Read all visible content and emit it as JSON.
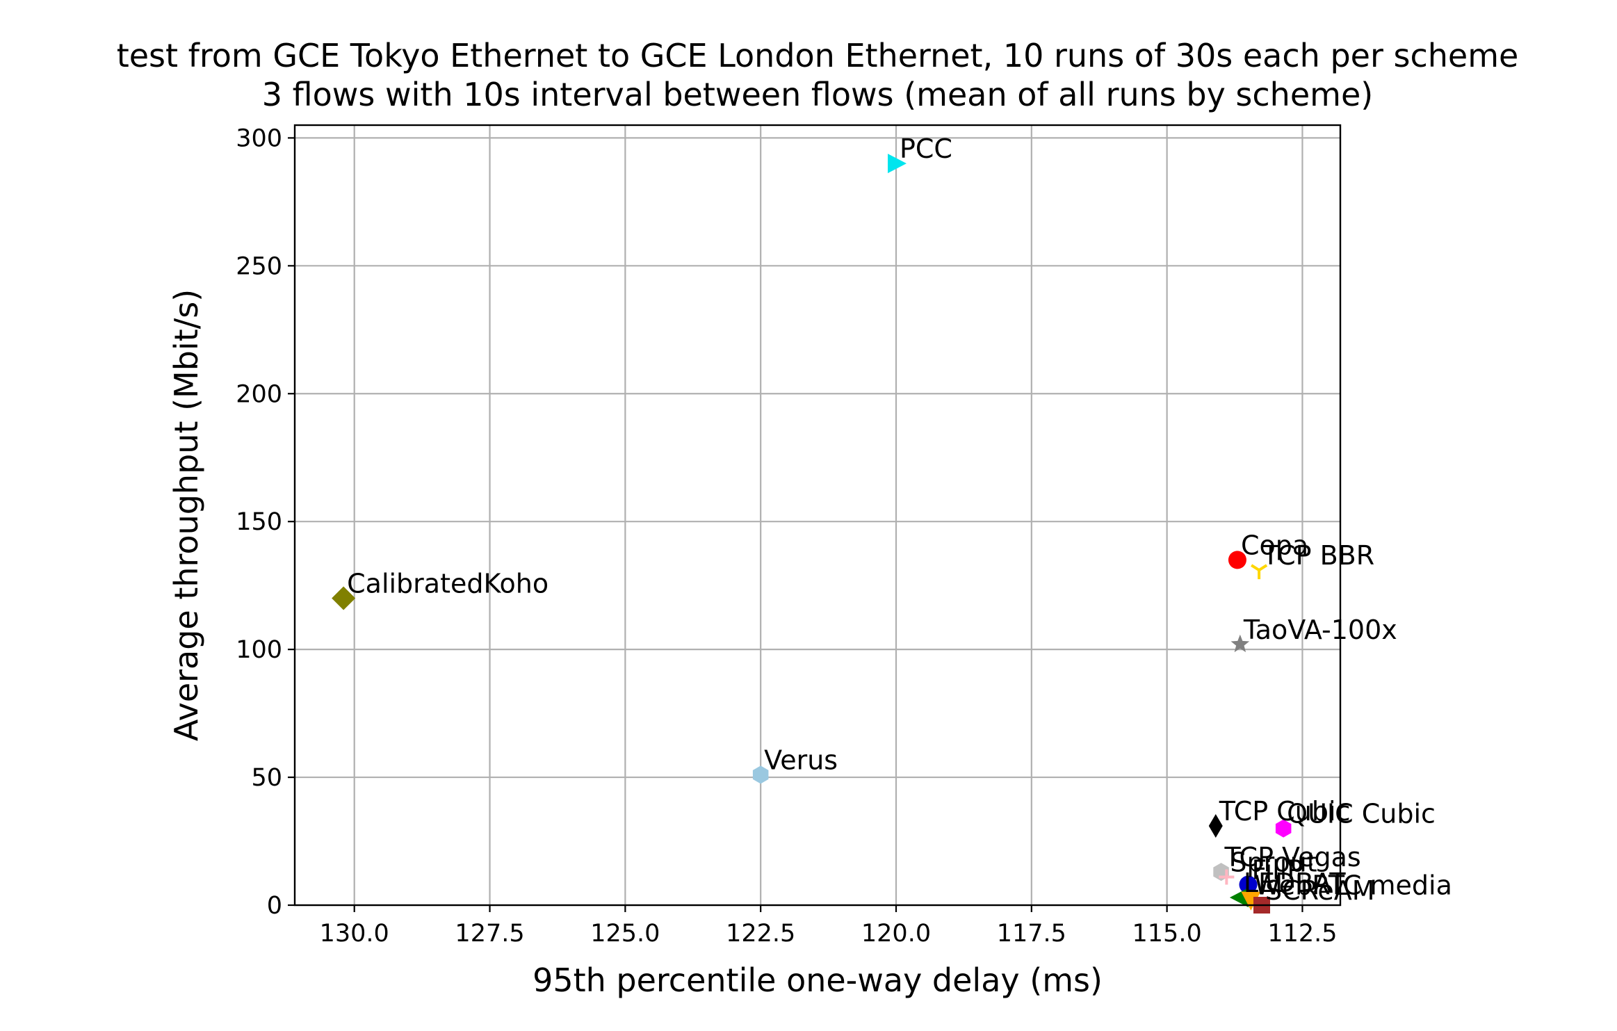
{
  "chart_data": {
    "type": "scatter",
    "title": [
      "test from GCE Tokyo Ethernet to GCE London Ethernet, 10 runs of 30s each per scheme",
      "3 flows with 10s interval between flows (mean of all runs by scheme)"
    ],
    "xlabel": "95th percentile one-way delay (ms)",
    "ylabel": "Average throughput (Mbit/s)",
    "x_reversed": true,
    "xlim": [
      131.1,
      111.8
    ],
    "ylim": [
      0,
      305
    ],
    "xticks": [
      130.0,
      127.5,
      125.0,
      122.5,
      120.0,
      117.5,
      115.0,
      112.5
    ],
    "xtick_labels": [
      "130.0",
      "127.5",
      "125.0",
      "122.5",
      "120.0",
      "117.5",
      "115.0",
      "112.5"
    ],
    "yticks": [
      0,
      50,
      100,
      150,
      200,
      250,
      300
    ],
    "ytick_labels": [
      "0",
      "50",
      "100",
      "150",
      "200",
      "250",
      "300"
    ],
    "grid": true,
    "points": [
      {
        "label": "PCC",
        "x": 120.0,
        "y": 290,
        "marker": "triangle-right",
        "color": "#00e5ee"
      },
      {
        "label": "CalibratedKoho",
        "x": 130.2,
        "y": 120,
        "marker": "diamond",
        "color": "#808000"
      },
      {
        "label": "Copa",
        "x": 113.7,
        "y": 135,
        "marker": "circle",
        "color": "#ff0000"
      },
      {
        "label": "TCP BBR",
        "x": 113.3,
        "y": 131,
        "marker": "tri-down",
        "color": "#ffd700"
      },
      {
        "label": "TaoVA-100x",
        "x": 113.65,
        "y": 102,
        "marker": "star",
        "color": "#808080"
      },
      {
        "label": "Verus",
        "x": 122.5,
        "y": 51,
        "marker": "hexagon",
        "color": "#9ac8e0"
      },
      {
        "label": "TCP Cubic",
        "x": 114.1,
        "y": 31,
        "marker": "thin-diamond",
        "color": "#000000"
      },
      {
        "label": "QUIC Cubic",
        "x": 112.85,
        "y": 30,
        "marker": "hexagon",
        "color": "#ff00ff"
      },
      {
        "label": "TCP Vegas",
        "x": 114.0,
        "y": 13,
        "marker": "hexagon",
        "color": "#c0c0c0"
      },
      {
        "label": "Sprout",
        "x": 113.9,
        "y": 11,
        "marker": "plus",
        "color": "#ffb6c1"
      },
      {
        "label": "FillP",
        "x": 113.5,
        "y": 8,
        "marker": "circle",
        "color": "#0000cd"
      },
      {
        "label": "LEDBAT",
        "x": 113.65,
        "y": 3,
        "marker": "triangle-left",
        "color": "#008000"
      },
      {
        "label": "WebRTC media",
        "x": 113.45,
        "y": 2,
        "marker": "triangle-down",
        "color": "#ffa500"
      },
      {
        "label": "SCReAM",
        "x": 113.25,
        "y": 0,
        "marker": "square",
        "color": "#a52a2a"
      }
    ]
  }
}
